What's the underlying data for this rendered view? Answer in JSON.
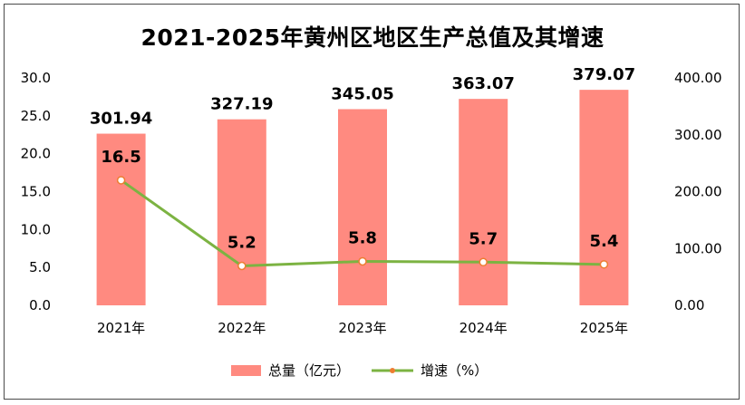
{
  "chart_data": {
    "type": "bar",
    "title": "2021-2025年黄州区地区生产总值及其增速",
    "categories": [
      "2021年",
      "2022年",
      "2023年",
      "2024年",
      "2025年"
    ],
    "series": [
      {
        "name": "总量（亿元）",
        "type": "bar",
        "axis": "right",
        "values": [
          301.94,
          327.19,
          345.05,
          363.07,
          379.07
        ],
        "labels": [
          "301.94",
          "327.19",
          "345.05",
          "363.07",
          "379.07"
        ],
        "color": "#FF8A80"
      },
      {
        "name": "增速（%）",
        "type": "line",
        "axis": "left",
        "values": [
          16.5,
          5.2,
          5.8,
          5.7,
          5.4
        ],
        "labels": [
          "16.5",
          "5.2",
          "5.8",
          "5.7",
          "5.4"
        ],
        "color": "#7CB342",
        "marker_color": "#ED7D31"
      }
    ],
    "y_left": {
      "range": [
        0,
        30
      ],
      "ticks": [
        "0.0",
        "5.0",
        "10.0",
        "15.0",
        "20.0",
        "25.0",
        "30.0"
      ]
    },
    "y_right": {
      "range": [
        0,
        400
      ],
      "ticks": [
        "0.00",
        "100.00",
        "200.00",
        "300.00",
        "400.00"
      ]
    },
    "grid": false,
    "legend_position": "bottom"
  }
}
